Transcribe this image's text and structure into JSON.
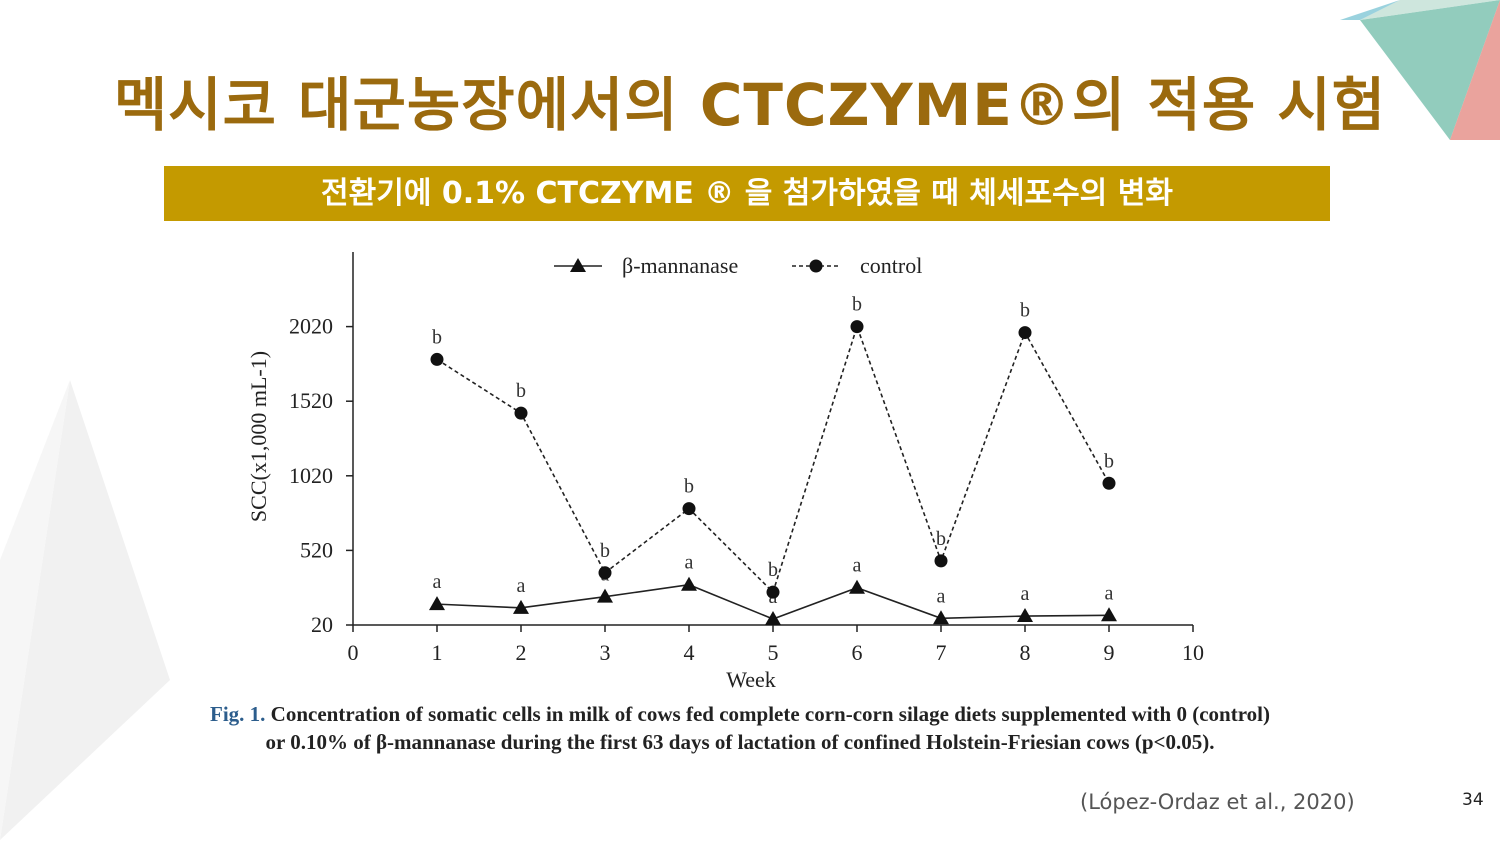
{
  "slide": {
    "title": "멕시코 대군농장에서의 CTCZYME®의 적용 시험",
    "subtitle": "전환기에 0.1% CTCZYME ® 을 첨가하였을 때 체세포수의 변화",
    "caption_label": "Fig. 1.",
    "caption_text": " Concentration of somatic cells in milk of cows fed complete corn-corn silage diets supplemented with 0 (control) or 0.10% of β-mannanase during the first 63 days of lactation of confined Holstein-Friesian cows (p<0.05).",
    "citation": "(López-Ordaz et al., 2020)",
    "page_number": "34",
    "colors": {
      "title": "#9b6a0e",
      "bar": "#c49a00"
    }
  },
  "chart_data": {
    "type": "line",
    "xlabel": "Week",
    "ylabel": "SCC(x1,000 mL-1)",
    "xlim": [
      0,
      10
    ],
    "ylim": [
      20,
      2520
    ],
    "x_ticks": [
      "0",
      "1",
      "2",
      "3",
      "4",
      "5",
      "6",
      "7",
      "8",
      "9",
      "10"
    ],
    "y_ticks": [
      "20",
      "520",
      "1020",
      "1520",
      "2020"
    ],
    "legend_position": "top",
    "grid": false,
    "series": [
      {
        "name": "β-mannanase",
        "marker": "triangle",
        "line": "solid",
        "x": [
          1,
          2,
          3,
          4,
          5,
          6,
          7,
          8,
          9
        ],
        "y": [
          160,
          135,
          210,
          290,
          60,
          270,
          65,
          80,
          85
        ],
        "labels": [
          "a",
          "a",
          "a",
          "a",
          "a",
          "a",
          "a",
          "a",
          "a"
        ]
      },
      {
        "name": "control",
        "marker": "circle",
        "line": "dashed",
        "x": [
          1,
          2,
          3,
          4,
          5,
          6,
          7,
          8,
          9
        ],
        "y": [
          1800,
          1440,
          370,
          800,
          240,
          2020,
          450,
          1980,
          970
        ],
        "labels": [
          "b",
          "b",
          "b",
          "b",
          "b",
          "b",
          "b",
          "b",
          "b"
        ]
      }
    ]
  }
}
